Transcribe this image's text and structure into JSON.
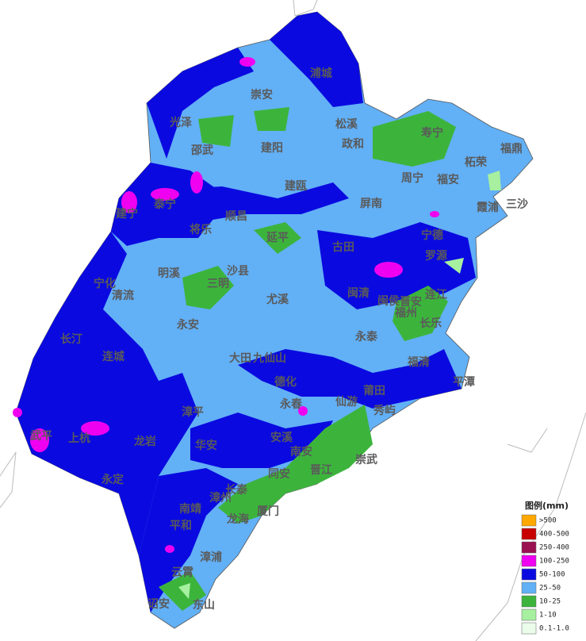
{
  "places": [
    "浦城",
    "崇安",
    "光泽",
    "松溪",
    "寿宁",
    "邵武",
    "建阳",
    "政和",
    "福鼎",
    "柘荣",
    "周宁",
    "福安",
    "建瓯",
    "泰宁",
    "建宁",
    "屏南",
    "霞浦",
    "三沙",
    "顺昌",
    "将乐",
    "延平",
    "古田",
    "宁德",
    "罗源",
    "宁化",
    "明溪",
    "沙县",
    "三明",
    "清流",
    "尤溪",
    "闽清",
    "闽侯",
    "晋安",
    "福州",
    "连江",
    "长乐",
    "永安",
    "永泰",
    "长汀",
    "连城",
    "大田",
    "九仙山",
    "福清",
    "平潭",
    "德化",
    "莆田",
    "仙游",
    "永春",
    "秀屿",
    "漳平",
    "武平",
    "上杭",
    "龙岩",
    "安溪",
    "华安",
    "南安",
    "崇武",
    "永定",
    "同安",
    "晋江",
    "漳州",
    "长泰",
    "南靖",
    "厦门",
    "龙海",
    "平和",
    "漳浦",
    "云霄",
    "诏安",
    "东山"
  ],
  "legend": {
    "title": "图例(mm)",
    "items": [
      {
        "label": ">500",
        "color": "#ffa800"
      },
      {
        "label": "400-500",
        "color": "#c80000"
      },
      {
        "label": "250-400",
        "color": "#9a1050"
      },
      {
        "label": "100-250",
        "color": "#f000f0"
      },
      {
        "label": "50-100",
        "color": "#0a0ae0"
      },
      {
        "label": "25-50",
        "color": "#62b0f6"
      },
      {
        "label": "10-25",
        "color": "#3cb43c"
      },
      {
        "label": "1-10",
        "color": "#a6f0a0"
      },
      {
        "label": "0.1-1.0",
        "color": "#eafcea"
      }
    ]
  }
}
